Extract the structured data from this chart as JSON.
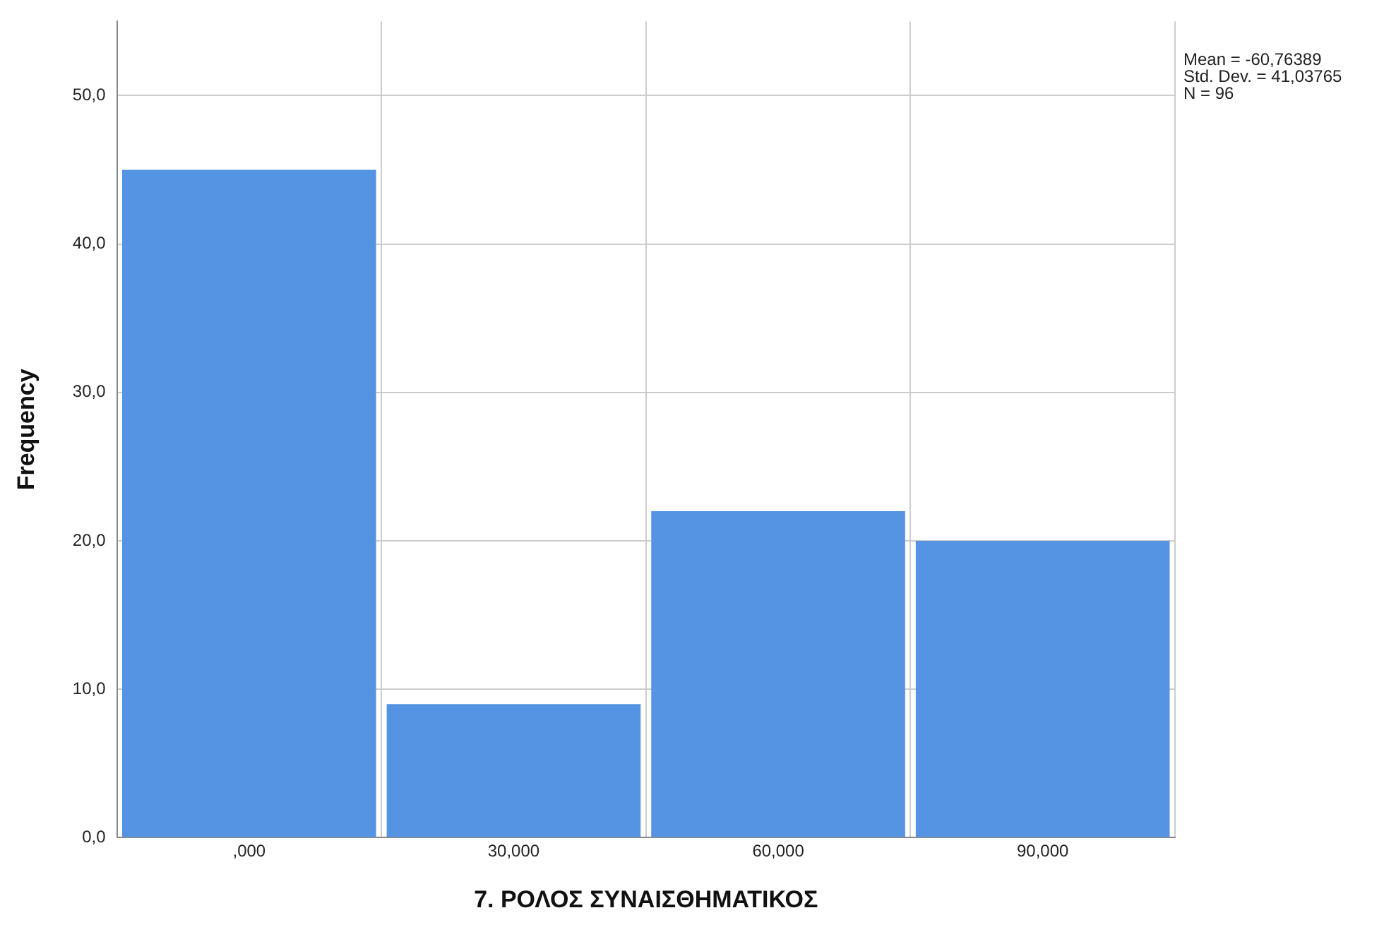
{
  "chart_data": {
    "type": "bar",
    "xlabel": "7. ΡΟΛΟΣ ΣΥΝΑΙΣΘΗΜΑΤΙΚΟΣ",
    "ylabel": "Frequency",
    "categories": [
      ",000",
      "30,000",
      "60,000",
      "90,000"
    ],
    "values": [
      45,
      9,
      22,
      20
    ],
    "color": "#5594e3",
    "ylim": [
      0,
      55
    ],
    "yticks": [
      {
        "value": 0,
        "label": "0,0"
      },
      {
        "value": 10,
        "label": "10,0"
      },
      {
        "value": 20,
        "label": "20,0"
      },
      {
        "value": 30,
        "label": "30,0"
      },
      {
        "value": 40,
        "label": "40,0"
      },
      {
        "value": 50,
        "label": "50,0"
      }
    ],
    "grid": true,
    "annotations": [
      "Mean = -60,76389",
      "Std. Dev. = 41,03765",
      "N = 96"
    ]
  }
}
